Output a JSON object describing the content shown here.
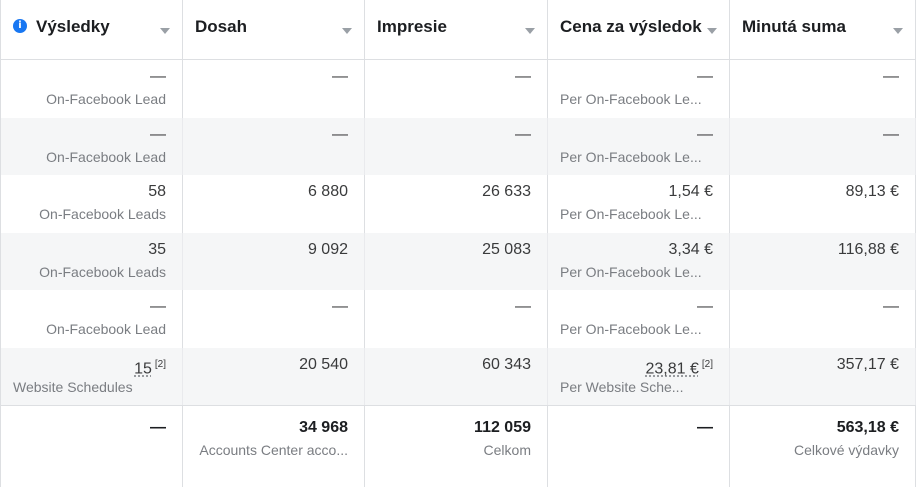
{
  "columns": [
    {
      "label": "Výsledky",
      "info": "i"
    },
    {
      "label": "Dosah"
    },
    {
      "label": "Impresie"
    },
    {
      "label": "Cena za výsledok"
    },
    {
      "label": "Minutá suma"
    }
  ],
  "rows": [
    {
      "results": {
        "value": "—",
        "sub": "On-Facebook Lead"
      },
      "reach": "—",
      "impressions": "—",
      "cost": {
        "value": "—",
        "sub": "Per On-Facebook Le..."
      },
      "spent": "—"
    },
    {
      "results": {
        "value": "—",
        "sub": "On-Facebook Lead"
      },
      "reach": "—",
      "impressions": "—",
      "cost": {
        "value": "—",
        "sub": "Per On-Facebook Le..."
      },
      "spent": "—"
    },
    {
      "results": {
        "value": "58",
        "sub": "On-Facebook Leads"
      },
      "reach": "6 880",
      "impressions": "26 633",
      "cost": {
        "value": "1,54 €",
        "sub": "Per On-Facebook Le..."
      },
      "spent": "89,13 €"
    },
    {
      "results": {
        "value": "35",
        "sub": "On-Facebook Leads"
      },
      "reach": "9 092",
      "impressions": "25 083",
      "cost": {
        "value": "3,34 €",
        "sub": "Per On-Facebook Le..."
      },
      "spent": "116,88 €"
    },
    {
      "results": {
        "value": "—",
        "sub": "On-Facebook Lead"
      },
      "reach": "—",
      "impressions": "—",
      "cost": {
        "value": "—",
        "sub": "Per On-Facebook Le..."
      },
      "spent": "—"
    },
    {
      "results": {
        "value": "15",
        "note": "[2]",
        "sub": "Website Schedules"
      },
      "reach": "20 540",
      "impressions": "60 343",
      "cost": {
        "value": "23,81 €",
        "note": "[2]",
        "sub": "Per Website Sche..."
      },
      "spent": "357,17 €"
    }
  ],
  "totals": {
    "results": "—",
    "reach": {
      "value": "34 968",
      "sub": "Accounts Center acco..."
    },
    "impressions": {
      "value": "112 059",
      "sub": "Celkom"
    },
    "cost": "—",
    "spent": {
      "value": "563,18 €",
      "sub": "Celkové výdavky"
    }
  }
}
